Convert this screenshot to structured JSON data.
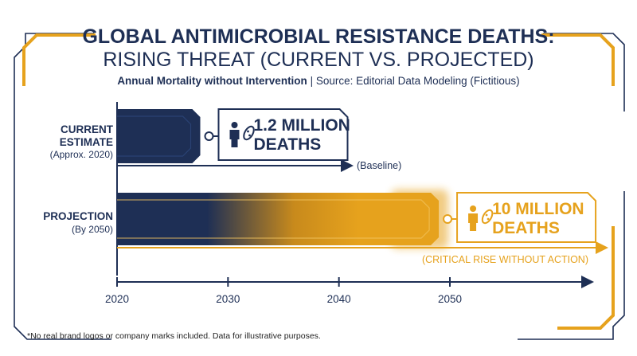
{
  "title": "GLOBAL ANTIMICROBIAL RESISTANCE DEATHS:",
  "subtitle": "RISING THREAT (CURRENT VS. PROJECTED)",
  "caption_bold": "Annual Mortality without Intervention",
  "caption_rest": " | Source: Editorial Data Modeling (Fictitious)",
  "footnote": "*No real brand logos or company marks included. Data for illustrative purposes.",
  "colors": {
    "navy": "#1e2f55",
    "gold": "#e6a21d",
    "frame": "#1e2f55"
  },
  "icons": [
    "person-icon",
    "microbe-icon"
  ],
  "chart_data": {
    "type": "bar",
    "orientation": "horizontal",
    "categories": [
      {
        "label": "CURRENT",
        "label2": "ESTIMATE",
        "note": "(Approx. 2020)"
      },
      {
        "label": "PROJECTION",
        "label2": "",
        "note": "(By 2050)"
      }
    ],
    "bars": [
      {
        "start_year": 2020,
        "end_year": 2027.5,
        "deaths_millions": 1.2,
        "callout_line1": "1.2 MILLION",
        "callout_line2": "DEATHS",
        "annotation": "(Baseline)",
        "color": "#1e2f55"
      },
      {
        "start_year": 2020,
        "end_year": 2049,
        "deaths_millions": 10,
        "callout_line1": "10 MILLION",
        "callout_line2": "DEATHS",
        "annotation": "(CRITICAL RISE WITHOUT ACTION)",
        "color": "#e6a21d"
      }
    ],
    "x_axis": {
      "ticks": [
        "2020",
        "2030",
        "2040",
        "2050"
      ],
      "xlim": [
        2020,
        2063
      ]
    },
    "grid": false
  }
}
